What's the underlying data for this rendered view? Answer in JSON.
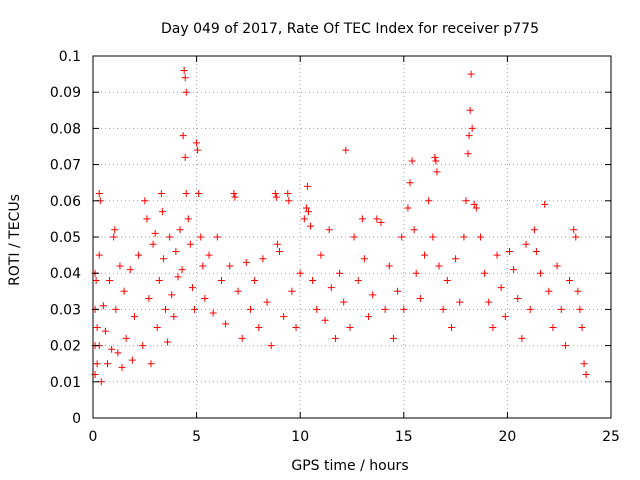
{
  "chart_data": {
    "type": "scatter",
    "title": "Day 049 of 2017, Rate Of TEC Index for receiver p775",
    "xlabel": "GPS time / hours",
    "ylabel": "ROTI / TECUs",
    "xlim": [
      0,
      25
    ],
    "ylim": [
      0,
      0.1
    ],
    "xticks": [
      "0",
      "5",
      "10",
      "15",
      "20",
      "25"
    ],
    "yticks": [
      "0",
      "0.01",
      "0.02",
      "0.03",
      "0.04",
      "0.05",
      "0.06",
      "0.07",
      "0.08",
      "0.09",
      "0.1"
    ],
    "grid": true,
    "marker": "plus",
    "color": "#ff0000",
    "data_extent_x": [
      0,
      23.8
    ],
    "series": [
      {
        "points": [
          [
            0.1,
            0.012
          ],
          [
            0.1,
            0.02
          ],
          [
            0.1,
            0.03
          ],
          [
            0.1,
            0.04
          ],
          [
            0.15,
            0.038
          ],
          [
            0.2,
            0.025
          ],
          [
            0.2,
            0.015
          ],
          [
            0.3,
            0.062
          ],
          [
            0.35,
            0.06
          ],
          [
            0.3,
            0.045
          ],
          [
            0.3,
            0.02
          ],
          [
            0.4,
            0.01
          ],
          [
            0.5,
            0.031
          ],
          [
            0.6,
            0.024
          ],
          [
            0.7,
            0.015
          ],
          [
            0.8,
            0.038
          ],
          [
            0.9,
            0.019
          ],
          [
            1.0,
            0.05
          ],
          [
            1.05,
            0.052
          ],
          [
            1.1,
            0.03
          ],
          [
            1.2,
            0.018
          ],
          [
            1.3,
            0.042
          ],
          [
            1.4,
            0.014
          ],
          [
            1.5,
            0.035
          ],
          [
            1.6,
            0.022
          ],
          [
            1.8,
            0.041
          ],
          [
            1.9,
            0.016
          ],
          [
            2.0,
            0.028
          ],
          [
            2.2,
            0.045
          ],
          [
            2.4,
            0.02
          ],
          [
            2.5,
            0.06
          ],
          [
            2.6,
            0.055
          ],
          [
            2.7,
            0.033
          ],
          [
            2.8,
            0.015
          ],
          [
            2.9,
            0.048
          ],
          [
            3.0,
            0.051
          ],
          [
            3.1,
            0.025
          ],
          [
            3.2,
            0.038
          ],
          [
            3.3,
            0.062
          ],
          [
            3.35,
            0.057
          ],
          [
            3.4,
            0.044
          ],
          [
            3.5,
            0.03
          ],
          [
            3.6,
            0.021
          ],
          [
            3.7,
            0.05
          ],
          [
            3.8,
            0.034
          ],
          [
            3.9,
            0.028
          ],
          [
            4.0,
            0.046
          ],
          [
            4.1,
            0.039
          ],
          [
            4.2,
            0.052
          ],
          [
            4.3,
            0.041
          ],
          [
            4.35,
            0.078
          ],
          [
            4.4,
            0.096
          ],
          [
            4.45,
            0.094
          ],
          [
            4.5,
            0.09
          ],
          [
            4.45,
            0.072
          ],
          [
            4.5,
            0.062
          ],
          [
            4.6,
            0.055
          ],
          [
            4.7,
            0.048
          ],
          [
            4.8,
            0.036
          ],
          [
            4.9,
            0.03
          ],
          [
            5.0,
            0.076
          ],
          [
            5.05,
            0.074
          ],
          [
            5.1,
            0.062
          ],
          [
            5.2,
            0.05
          ],
          [
            5.3,
            0.042
          ],
          [
            5.4,
            0.033
          ],
          [
            5.6,
            0.045
          ],
          [
            5.8,
            0.029
          ],
          [
            6.0,
            0.05
          ],
          [
            6.2,
            0.038
          ],
          [
            6.4,
            0.026
          ],
          [
            6.6,
            0.042
          ],
          [
            6.8,
            0.062
          ],
          [
            6.85,
            0.061
          ],
          [
            7.0,
            0.035
          ],
          [
            7.2,
            0.022
          ],
          [
            7.4,
            0.043
          ],
          [
            7.6,
            0.03
          ],
          [
            7.8,
            0.038
          ],
          [
            8.0,
            0.025
          ],
          [
            8.2,
            0.044
          ],
          [
            8.4,
            0.032
          ],
          [
            8.6,
            0.02
          ],
          [
            8.8,
            0.062
          ],
          [
            8.85,
            0.061
          ],
          [
            8.9,
            0.048
          ],
          [
            9.0,
            0.046
          ],
          [
            9.2,
            0.028
          ],
          [
            9.4,
            0.062
          ],
          [
            9.45,
            0.06
          ],
          [
            9.6,
            0.035
          ],
          [
            9.8,
            0.025
          ],
          [
            10.0,
            0.04
          ],
          [
            10.2,
            0.055
          ],
          [
            10.3,
            0.058
          ],
          [
            10.35,
            0.064
          ],
          [
            10.4,
            0.057
          ],
          [
            10.5,
            0.053
          ],
          [
            10.6,
            0.038
          ],
          [
            10.8,
            0.03
          ],
          [
            11.0,
            0.045
          ],
          [
            11.2,
            0.027
          ],
          [
            11.4,
            0.052
          ],
          [
            11.5,
            0.036
          ],
          [
            11.7,
            0.022
          ],
          [
            11.9,
            0.04
          ],
          [
            12.1,
            0.032
          ],
          [
            12.2,
            0.074
          ],
          [
            12.4,
            0.025
          ],
          [
            12.6,
            0.05
          ],
          [
            12.8,
            0.038
          ],
          [
            13.0,
            0.055
          ],
          [
            13.1,
            0.044
          ],
          [
            13.3,
            0.028
          ],
          [
            13.5,
            0.034
          ],
          [
            13.7,
            0.055
          ],
          [
            13.9,
            0.054
          ],
          [
            14.1,
            0.03
          ],
          [
            14.3,
            0.042
          ],
          [
            14.5,
            0.022
          ],
          [
            14.7,
            0.035
          ],
          [
            14.9,
            0.05
          ],
          [
            15.0,
            0.03
          ],
          [
            15.2,
            0.058
          ],
          [
            15.3,
            0.065
          ],
          [
            15.4,
            0.071
          ],
          [
            15.5,
            0.052
          ],
          [
            15.6,
            0.04
          ],
          [
            15.8,
            0.033
          ],
          [
            16.0,
            0.045
          ],
          [
            16.2,
            0.06
          ],
          [
            16.4,
            0.05
          ],
          [
            16.5,
            0.072
          ],
          [
            16.55,
            0.071
          ],
          [
            16.6,
            0.068
          ],
          [
            16.7,
            0.042
          ],
          [
            16.9,
            0.03
          ],
          [
            17.1,
            0.038
          ],
          [
            17.3,
            0.025
          ],
          [
            17.5,
            0.044
          ],
          [
            17.7,
            0.032
          ],
          [
            17.9,
            0.05
          ],
          [
            18.0,
            0.06
          ],
          [
            18.1,
            0.073
          ],
          [
            18.15,
            0.078
          ],
          [
            18.2,
            0.085
          ],
          [
            18.25,
            0.095
          ],
          [
            18.3,
            0.08
          ],
          [
            18.4,
            0.059
          ],
          [
            18.5,
            0.058
          ],
          [
            18.7,
            0.05
          ],
          [
            18.9,
            0.04
          ],
          [
            19.1,
            0.032
          ],
          [
            19.3,
            0.025
          ],
          [
            19.5,
            0.045
          ],
          [
            19.7,
            0.036
          ],
          [
            19.9,
            0.028
          ],
          [
            20.1,
            0.046
          ],
          [
            20.3,
            0.041
          ],
          [
            20.5,
            0.033
          ],
          [
            20.7,
            0.022
          ],
          [
            20.9,
            0.048
          ],
          [
            21.1,
            0.03
          ],
          [
            21.3,
            0.052
          ],
          [
            21.4,
            0.046
          ],
          [
            21.6,
            0.04
          ],
          [
            21.8,
            0.059
          ],
          [
            22.0,
            0.035
          ],
          [
            22.2,
            0.025
          ],
          [
            22.4,
            0.042
          ],
          [
            22.6,
            0.03
          ],
          [
            22.8,
            0.02
          ],
          [
            23.0,
            0.038
          ],
          [
            23.2,
            0.052
          ],
          [
            23.3,
            0.05
          ],
          [
            23.4,
            0.035
          ],
          [
            23.5,
            0.03
          ],
          [
            23.6,
            0.025
          ],
          [
            23.7,
            0.015
          ],
          [
            23.8,
            0.012
          ]
        ]
      }
    ]
  }
}
